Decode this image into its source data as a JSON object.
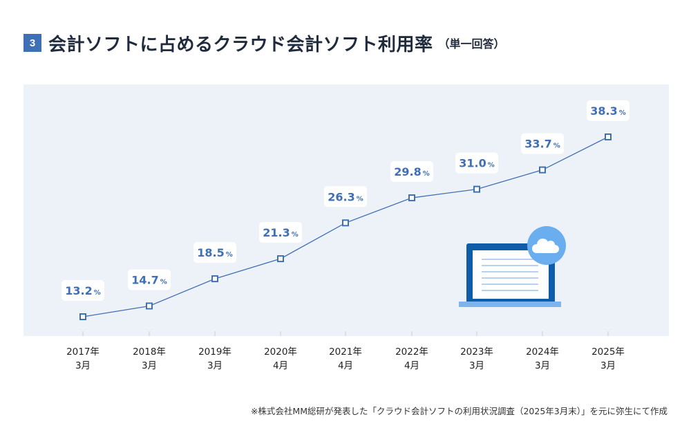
{
  "header": {
    "badge": "3",
    "title": "会計ソフトに占めるクラウド会計ソフト利用率",
    "subtitle": "（単一回答）"
  },
  "chart_data": {
    "type": "line",
    "title": "",
    "xlabel": "",
    "ylabel": "",
    "unit": "%",
    "ylim": [
      8,
      45
    ],
    "grid": false,
    "categories": [
      [
        "2017年",
        "3月"
      ],
      [
        "2018年",
        "3月"
      ],
      [
        "2019年",
        "3月"
      ],
      [
        "2020年",
        "4月"
      ],
      [
        "2021年",
        "4月"
      ],
      [
        "2022年",
        "4月"
      ],
      [
        "2023年",
        "3月"
      ],
      [
        "2024年",
        "3月"
      ],
      [
        "2025年",
        "3月"
      ]
    ],
    "values": [
      13.2,
      14.7,
      18.5,
      21.3,
      26.3,
      29.8,
      31.0,
      33.7,
      38.3
    ],
    "colors": {
      "line": "#3f6fb5",
      "label_text": "#3f6fb5",
      "panel": "#edf2f8"
    }
  },
  "illustration": {
    "icon": "laptop-cloud-icon"
  },
  "footnote": "※株式会社MM総研が発表した「クラウド会計ソフトの利用状況調査（2025年3月末）」を元に弥生にて作成"
}
